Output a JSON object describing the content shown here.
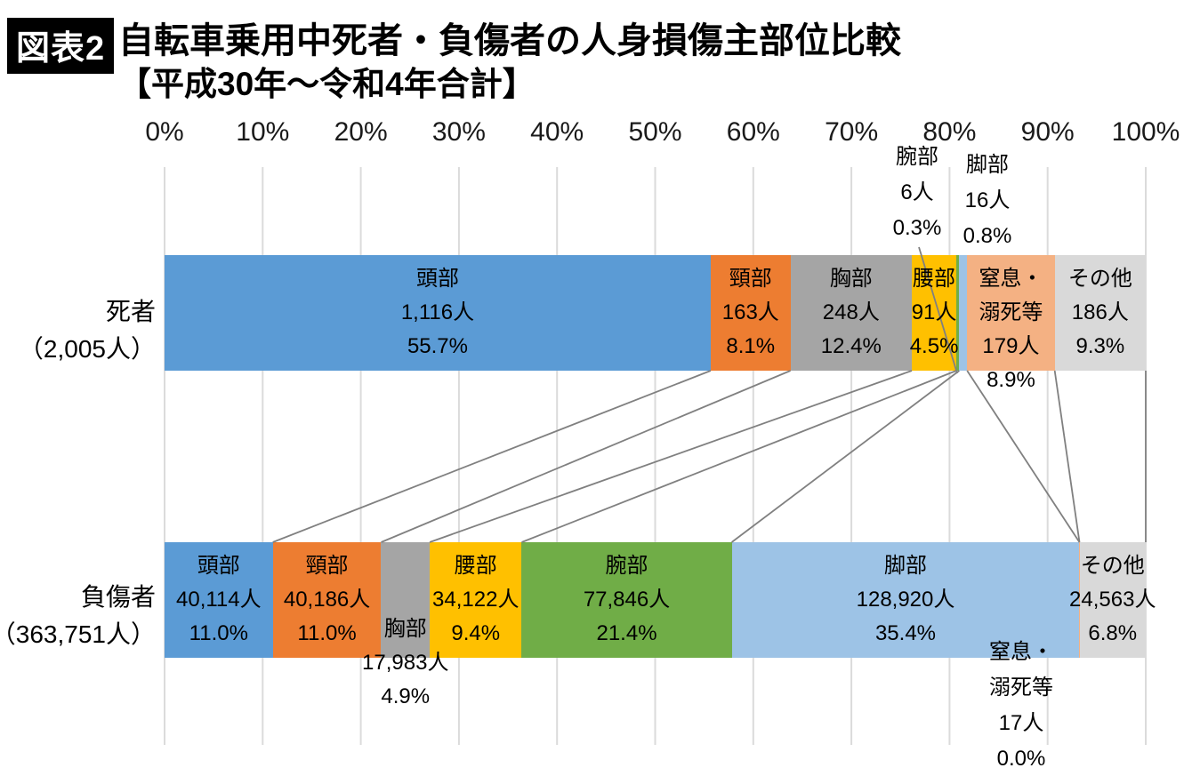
{
  "header": {
    "badge": "図表2",
    "title": "自転車乗用中死者・負傷者の人身損傷主部位比較",
    "subtitle": "【平成30年～令和4年合計】"
  },
  "chart_data": {
    "type": "bar",
    "subtype": "stacked-100-horizontal",
    "title": "自転車乗用中死者・負傷者の人身損傷主部位比較",
    "subtitle": "【平成30年～令和4年合計】",
    "grid": true,
    "axis_ticks": [
      "0%",
      "10%",
      "20%",
      "30%",
      "40%",
      "50%",
      "60%",
      "70%",
      "80%",
      "90%",
      "100%"
    ],
    "grid_color": "#dbdbdb",
    "connector_color": "#808080",
    "rows": [
      {
        "id": "deaths",
        "label": "死者",
        "total_label": "（2,005人）",
        "total": 2005,
        "segments": [
          {
            "key": "head",
            "part": "頭部",
            "count": 1116,
            "count_label": "1,116人",
            "pct_label": "55.7%",
            "color": "#5B9BD5",
            "label_pos": "inside"
          },
          {
            "key": "neck",
            "part": "頸部",
            "count": 163,
            "count_label": "163人",
            "pct_label": "8.1%",
            "color": "#ED7D31",
            "label_pos": "inside"
          },
          {
            "key": "chest",
            "part": "胸部",
            "count": 248,
            "count_label": "248人",
            "pct_label": "12.4%",
            "color": "#A5A5A5",
            "label_pos": "inside"
          },
          {
            "key": "lumbar",
            "part": "腰部",
            "count": 91,
            "count_label": "91人",
            "pct_label": "4.5%",
            "color": "#FFC000",
            "label_pos": "inside"
          },
          {
            "key": "arm",
            "part": "腕部",
            "count": 6,
            "count_label": "6人",
            "pct_label": "0.3%",
            "color": "#70AD47",
            "label_pos": "above",
            "leader": true
          },
          {
            "key": "leg",
            "part": "脚部",
            "count": 16,
            "count_label": "16人",
            "pct_label": "0.8%",
            "color": "#9DC3E6",
            "label_pos": "above"
          },
          {
            "key": "drowning",
            "part": "窒息・溺死等",
            "name_lines": [
              "窒息・",
              "溺死等"
            ],
            "count": 179,
            "count_label": "179人",
            "pct_label": "8.9%",
            "color": "#F4B183",
            "label_pos": "inside-overflow"
          },
          {
            "key": "other",
            "part": "その他",
            "count": 186,
            "count_label": "186人",
            "pct_label": "9.3%",
            "color": "#D9D9D9",
            "label_pos": "inside"
          }
        ]
      },
      {
        "id": "injured",
        "label": "負傷者",
        "total_label": "（363,751人）",
        "total": 363751,
        "segments": [
          {
            "key": "head",
            "part": "頭部",
            "count": 40114,
            "count_label": "40,114人",
            "pct_label": "11.0%",
            "color": "#5B9BD5",
            "label_pos": "inside"
          },
          {
            "key": "neck",
            "part": "頸部",
            "count": 40186,
            "count_label": "40,186人",
            "pct_label": "11.0%",
            "color": "#ED7D31",
            "label_pos": "inside"
          },
          {
            "key": "chest",
            "part": "胸部",
            "count": 17983,
            "count_label": "17,983人",
            "pct_label": "4.9%",
            "color": "#A5A5A5",
            "label_pos": "bottom-overflow"
          },
          {
            "key": "lumbar",
            "part": "腰部",
            "count": 34122,
            "count_label": "34,122人",
            "pct_label": "9.4%",
            "color": "#FFC000",
            "label_pos": "inside"
          },
          {
            "key": "arm",
            "part": "腕部",
            "count": 77846,
            "count_label": "77,846人",
            "pct_label": "21.4%",
            "color": "#70AD47",
            "label_pos": "inside"
          },
          {
            "key": "leg",
            "part": "脚部",
            "count": 128920,
            "count_label": "128,920人",
            "pct_label": "35.4%",
            "color": "#9DC3E6",
            "label_pos": "inside"
          },
          {
            "key": "drowning",
            "part": "窒息・溺死等",
            "name_lines": [
              "窒息・",
              "溺死等"
            ],
            "count": 17,
            "count_label": "17人",
            "pct_label": "0.0%",
            "color": "#F4B183",
            "label_pos": "below"
          },
          {
            "key": "other",
            "part": "その他",
            "count": 24563,
            "count_label": "24,563人",
            "pct_label": "6.8%",
            "color": "#D9D9D9",
            "label_pos": "inside"
          }
        ]
      }
    ]
  }
}
